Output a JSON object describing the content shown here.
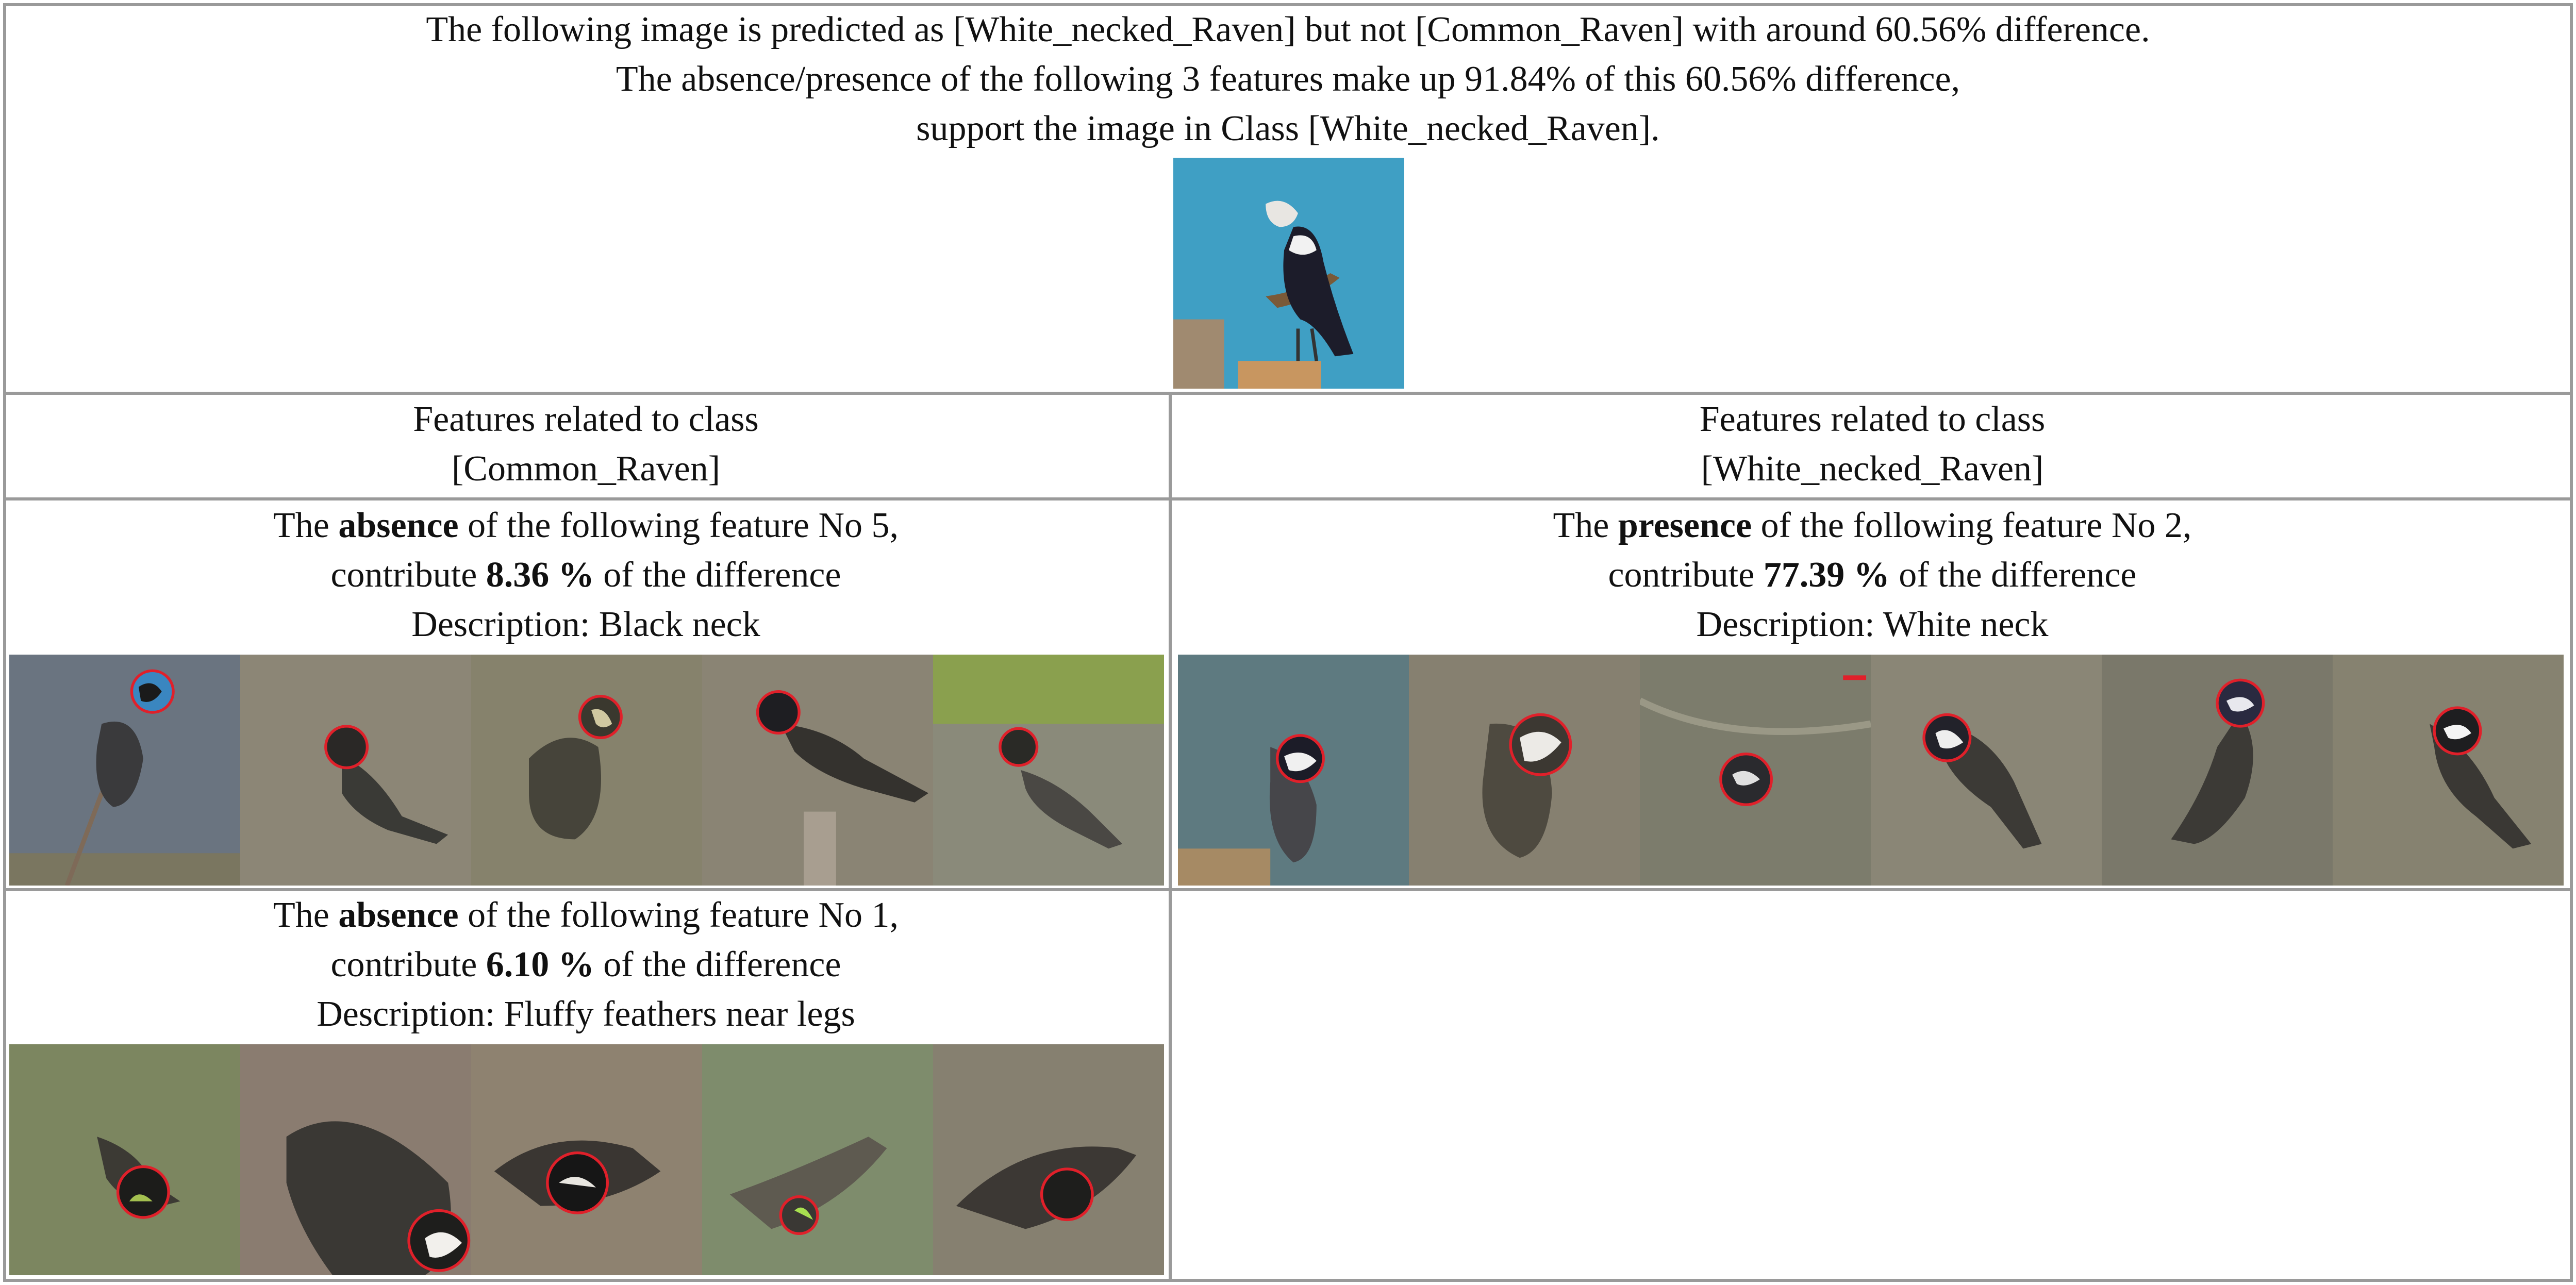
{
  "header": {
    "line1": "The following image is predicted as [White_necked_Raven] but not [Common_Raven] with around 60.56% difference.",
    "line2": "The absence/presence of the following 3 features make up 91.84% of this 60.56% difference,",
    "line3": "support the image in Class [White_necked_Raven]."
  },
  "columns": {
    "left": {
      "line1": "Features related to class",
      "line2": "[Common_Raven]"
    },
    "right": {
      "line1": "Features related to class",
      "line2": "[White_necked_Raven]"
    }
  },
  "features": [
    {
      "prefix": "The ",
      "state": "absence",
      "mid": " of the following feature No 5,",
      "pre2": "contribute ",
      "pct": "8.36 %",
      "post2": " of the difference",
      "description": "Description: Black neck"
    },
    {
      "prefix": "The ",
      "state": "presence",
      "mid": " of the following feature No 2,",
      "pre2": "contribute ",
      "pct": "77.39 %",
      "post2": " of the difference",
      "description": "Description: White neck"
    },
    {
      "prefix": "The ",
      "state": "absence",
      "mid": " of the following feature No 1,",
      "pre2": "contribute ",
      "pct": "6.10 %",
      "post2": " of the difference",
      "description": "Description: Fluffy feathers near legs"
    }
  ],
  "colors": {
    "grid": "#9a9a9a",
    "highlight": "#e0202a",
    "dimmed_bg": "#8e8a78",
    "sky_blue": "#3f9fc4"
  }
}
